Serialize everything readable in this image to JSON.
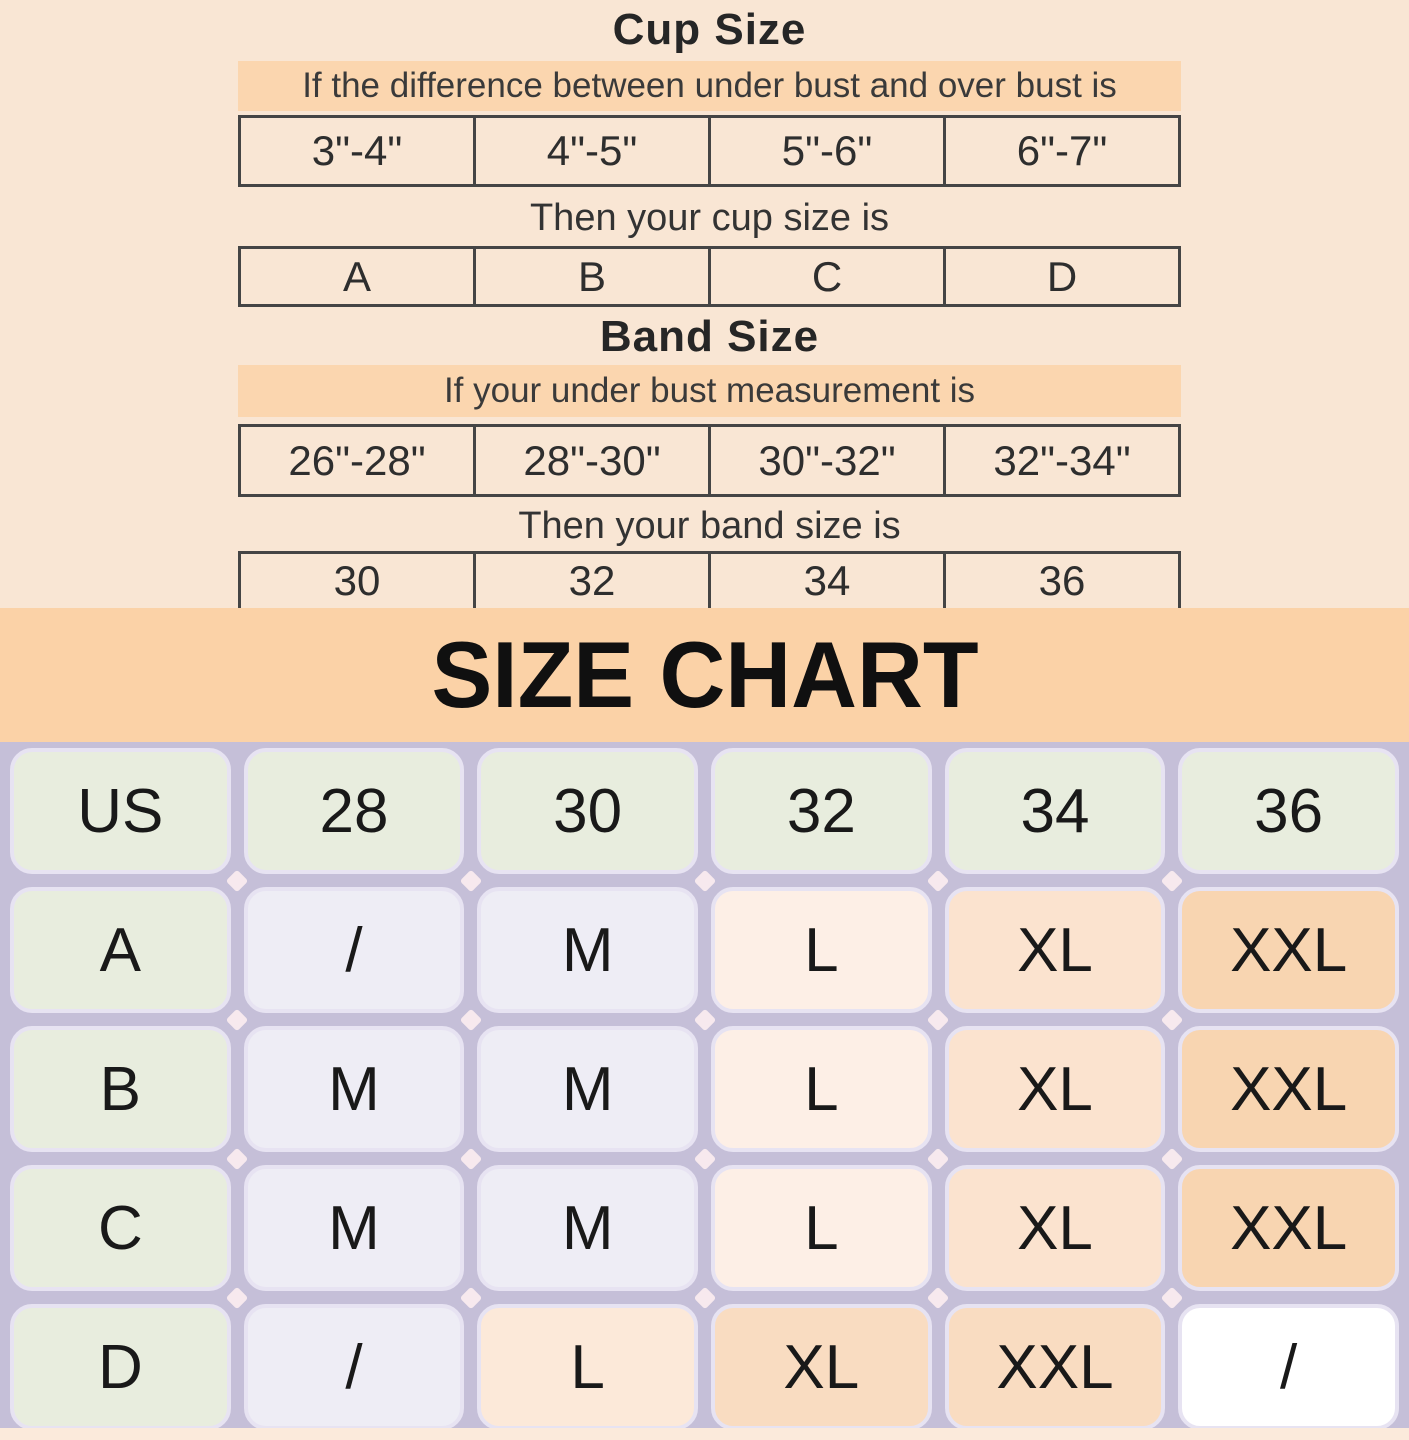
{
  "cup_size": {
    "title": "Cup Size",
    "condition": "If the difference between under bust and over bust is",
    "ranges": [
      "3\"-4\"",
      "4\"-5\"",
      "5\"-6\"",
      "6\"-7\""
    ],
    "result_label": "Then your cup size is",
    "results": [
      "A",
      "B",
      "C",
      "D"
    ]
  },
  "band_size": {
    "title": "Band Size",
    "condition": "If your under bust measurement is",
    "ranges": [
      "26\"-28\"",
      "28\"-30\"",
      "30\"-32\"",
      "32\"-34\""
    ],
    "result_label": "Then your band size is",
    "results": [
      "30",
      "32",
      "34",
      "36"
    ]
  },
  "size_chart": {
    "title": "SIZE CHART",
    "header": [
      "US",
      "28",
      "30",
      "32",
      "34",
      "36"
    ],
    "rows": [
      [
        "A",
        "/",
        "M",
        "L",
        "XL",
        "XXL"
      ],
      [
        "B",
        "M",
        "M",
        "L",
        "XL",
        "XXL"
      ],
      [
        "C",
        "M",
        "M",
        "L",
        "XL",
        "XXL"
      ],
      [
        "D",
        "/",
        "L",
        "XL",
        "XXL",
        "/"
      ]
    ]
  },
  "colors": {
    "page_background": "#f9e6d4",
    "banner_orange": "#fbd6af",
    "size_banner_orange": "#fbd2a7",
    "grid_background": "#c5bfd8",
    "cell_green": "#e8edde",
    "cell_gray": "#eeedf5",
    "cell_peach_light": "#fdefe6",
    "cell_peach_mid": "#fbe3cf",
    "cell_peach_dark": "#f8d5b1",
    "cell_white": "#ffffff"
  }
}
